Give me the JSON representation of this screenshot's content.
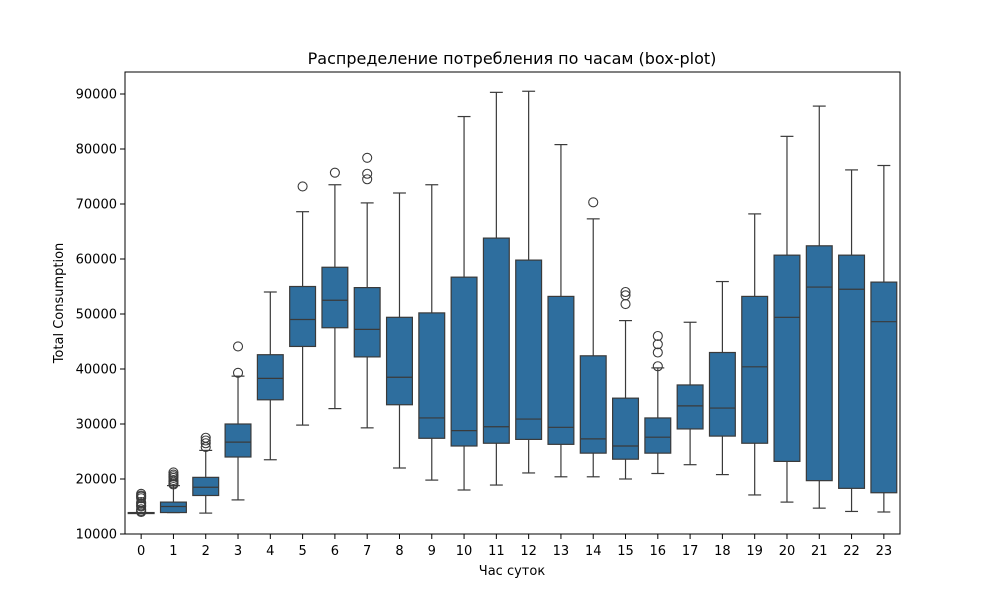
{
  "chart_data": {
    "type": "box",
    "title": "Распределение потребления по часам (box-plot)",
    "xlabel": "Час суток",
    "ylabel": "Total Consumption",
    "ylim": [
      10000,
      94000
    ],
    "yticks": [
      10000,
      20000,
      30000,
      40000,
      50000,
      60000,
      70000,
      80000,
      90000
    ],
    "grid": false,
    "box_color": "#2e6e9e",
    "edge_color": "#3a3a3a",
    "categories": [
      "0",
      "1",
      "2",
      "3",
      "4",
      "5",
      "6",
      "7",
      "8",
      "9",
      "10",
      "11",
      "12",
      "13",
      "14",
      "15",
      "16",
      "17",
      "18",
      "19",
      "20",
      "21",
      "22",
      "23"
    ],
    "boxes": [
      {
        "hour": "0",
        "whislo": 13800,
        "q1": 13800,
        "med": 13800,
        "q3": 13900,
        "whishi": 13900,
        "fliers": [
          17300,
          17000,
          16800,
          16500,
          15800,
          15500,
          15200,
          15000,
          14500,
          14200,
          14000
        ]
      },
      {
        "hour": "1",
        "whislo": 13900,
        "q1": 13900,
        "med": 15000,
        "q3": 15800,
        "whishi": 18800,
        "fliers": [
          21200,
          20800,
          20500,
          20200,
          19800,
          19500,
          19200,
          19000
        ]
      },
      {
        "hour": "2",
        "whislo": 13800,
        "q1": 17000,
        "med": 18500,
        "q3": 20300,
        "whishi": 25200,
        "fliers": [
          27500,
          27000,
          26500,
          25800
        ]
      },
      {
        "hour": "3",
        "whislo": 16200,
        "q1": 24000,
        "med": 26700,
        "q3": 30000,
        "whishi": 38700,
        "fliers": [
          44100,
          39300
        ]
      },
      {
        "hour": "4",
        "whislo": 23500,
        "q1": 34400,
        "med": 38300,
        "q3": 42600,
        "whishi": 54000,
        "fliers": []
      },
      {
        "hour": "5",
        "whislo": 29800,
        "q1": 44100,
        "med": 49000,
        "q3": 55000,
        "whishi": 68600,
        "fliers": [
          73200
        ]
      },
      {
        "hour": "6",
        "whislo": 32800,
        "q1": 47500,
        "med": 52500,
        "q3": 58500,
        "whishi": 73500,
        "fliers": [
          75700
        ]
      },
      {
        "hour": "7",
        "whislo": 29300,
        "q1": 42200,
        "med": 47200,
        "q3": 54800,
        "whishi": 70200,
        "fliers": [
          78400,
          75500,
          74500
        ]
      },
      {
        "hour": "8",
        "whislo": 22000,
        "q1": 33500,
        "med": 38500,
        "q3": 49400,
        "whishi": 72000,
        "fliers": []
      },
      {
        "hour": "9",
        "whislo": 19800,
        "q1": 27400,
        "med": 31100,
        "q3": 50200,
        "whishi": 73500,
        "fliers": []
      },
      {
        "hour": "10",
        "whislo": 18000,
        "q1": 26000,
        "med": 28800,
        "q3": 56700,
        "whishi": 85900,
        "fliers": []
      },
      {
        "hour": "11",
        "whislo": 18900,
        "q1": 26500,
        "med": 29500,
        "q3": 63800,
        "whishi": 90300,
        "fliers": []
      },
      {
        "hour": "12",
        "whislo": 21100,
        "q1": 27200,
        "med": 30900,
        "q3": 59800,
        "whishi": 90500,
        "fliers": []
      },
      {
        "hour": "13",
        "whislo": 20400,
        "q1": 26300,
        "med": 29400,
        "q3": 53200,
        "whishi": 80800,
        "fliers": []
      },
      {
        "hour": "14",
        "whislo": 20400,
        "q1": 24700,
        "med": 27300,
        "q3": 42400,
        "whishi": 67300,
        "fliers": [
          70300
        ]
      },
      {
        "hour": "15",
        "whislo": 20000,
        "q1": 23600,
        "med": 26000,
        "q3": 34700,
        "whishi": 48800,
        "fliers": [
          54000,
          53400,
          51800
        ]
      },
      {
        "hour": "16",
        "whislo": 21000,
        "q1": 24700,
        "med": 27600,
        "q3": 31100,
        "whishi": 40200,
        "fliers": [
          46000,
          44500,
          43000,
          40500
        ]
      },
      {
        "hour": "17",
        "whislo": 22600,
        "q1": 29100,
        "med": 33300,
        "q3": 37100,
        "whishi": 48500,
        "fliers": []
      },
      {
        "hour": "18",
        "whislo": 20800,
        "q1": 27800,
        "med": 32900,
        "q3": 43000,
        "whishi": 55900,
        "fliers": []
      },
      {
        "hour": "19",
        "whislo": 17100,
        "q1": 26500,
        "med": 40400,
        "q3": 53200,
        "whishi": 68200,
        "fliers": []
      },
      {
        "hour": "20",
        "whislo": 15800,
        "q1": 23200,
        "med": 49400,
        "q3": 60700,
        "whishi": 82300,
        "fliers": []
      },
      {
        "hour": "21",
        "whislo": 14700,
        "q1": 19700,
        "med": 54900,
        "q3": 62400,
        "whishi": 87800,
        "fliers": []
      },
      {
        "hour": "22",
        "whislo": 14100,
        "q1": 18300,
        "med": 54500,
        "q3": 60700,
        "whishi": 76200,
        "fliers": []
      },
      {
        "hour": "23",
        "whislo": 14000,
        "q1": 17500,
        "med": 48600,
        "q3": 55800,
        "whishi": 77000,
        "fliers": []
      }
    ]
  }
}
